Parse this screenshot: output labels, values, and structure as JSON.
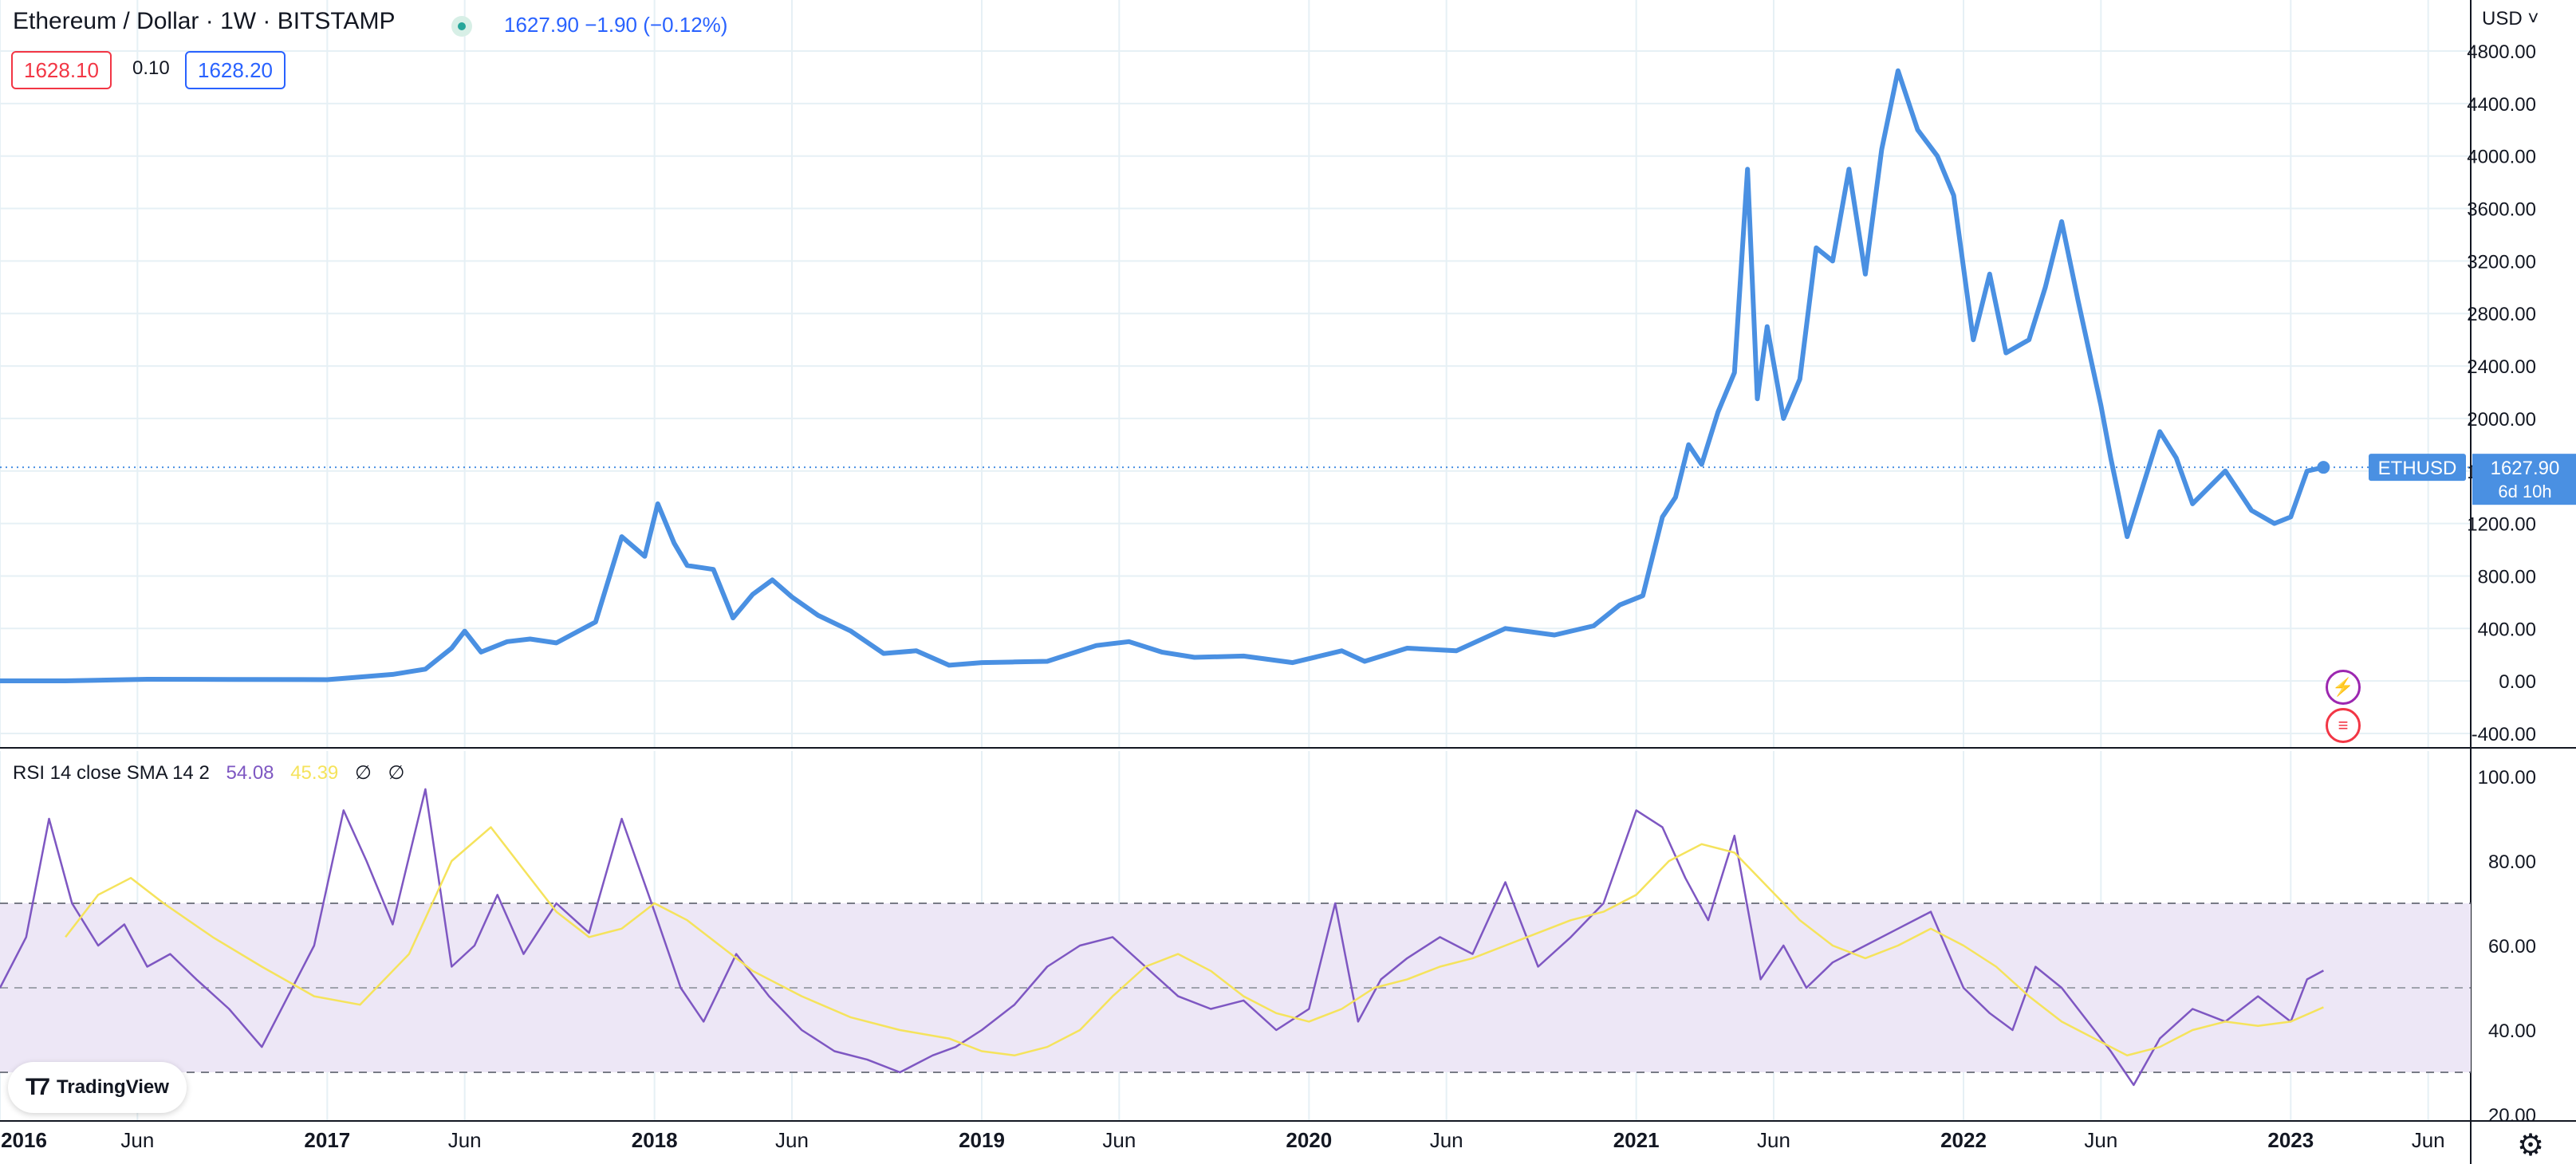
{
  "header": {
    "title": "Ethereum / Dollar · 1W · BITSTAMP",
    "last": "1627.90",
    "change": "−1.90 (−0.12%)",
    "bid": "1628.10",
    "spread": "0.10",
    "ask": "1628.20"
  },
  "currency": "USD",
  "price_label": {
    "symbol": "ETHUSD",
    "price": "1627.90",
    "countdown": "6d 10h"
  },
  "rsi_legend": {
    "label": "RSI 14 close SMA 14 2",
    "rsi_value": "54.08",
    "sma_value": "45.39",
    "na1": "∅",
    "na2": "∅"
  },
  "branding": "TradingView",
  "colors": {
    "price_line": "#4a90e2",
    "rsi_line": "#7e57c2",
    "rsi_sma_line": "#f5e35c",
    "rsi_band_fill": "#ede7f6",
    "accent_blue": "#2962ff",
    "down_red": "#f23645",
    "grid": "#e6f0f5"
  },
  "chart_data": [
    {
      "type": "line",
      "name": "price",
      "y_ticks": [
        -400,
        0,
        400,
        800,
        1200,
        1600,
        2000,
        2400,
        2800,
        3200,
        3600,
        4000,
        4400,
        4800
      ],
      "ylim": [
        -400,
        4800
      ],
      "x_tick_labels": [
        "2016",
        "Jun",
        "2017",
        "Jun",
        "2018",
        "Jun",
        "2019",
        "Jun",
        "2020",
        "Jun",
        "2021",
        "Jun",
        "2022",
        "Jun",
        "2023",
        "Jun"
      ],
      "x_tick_values": [
        2016.0,
        2016.42,
        2017.0,
        2017.42,
        2018.0,
        2018.42,
        2019.0,
        2019.42,
        2020.0,
        2020.42,
        2021.0,
        2021.42,
        2022.0,
        2022.42,
        2023.0,
        2023.42
      ],
      "xlim": [
        2016.0,
        2023.55
      ],
      "x": [
        2016.0,
        2016.2,
        2016.45,
        2016.7,
        2017.0,
        2017.2,
        2017.3,
        2017.38,
        2017.42,
        2017.47,
        2017.55,
        2017.62,
        2017.7,
        2017.82,
        2017.9,
        2017.97,
        2018.01,
        2018.06,
        2018.1,
        2018.18,
        2018.24,
        2018.3,
        2018.36,
        2018.42,
        2018.5,
        2018.6,
        2018.7,
        2018.8,
        2018.9,
        2019.0,
        2019.1,
        2019.2,
        2019.35,
        2019.45,
        2019.55,
        2019.65,
        2019.8,
        2019.95,
        2020.1,
        2020.17,
        2020.3,
        2020.45,
        2020.6,
        2020.75,
        2020.87,
        2020.95,
        2021.02,
        2021.08,
        2021.12,
        2021.16,
        2021.2,
        2021.25,
        2021.3,
        2021.34,
        2021.37,
        2021.4,
        2021.45,
        2021.5,
        2021.55,
        2021.6,
        2021.65,
        2021.7,
        2021.75,
        2021.8,
        2021.86,
        2021.92,
        2021.97,
        2022.03,
        2022.08,
        2022.13,
        2022.2,
        2022.25,
        2022.3,
        2022.35,
        2022.42,
        2022.45,
        2022.5,
        2022.55,
        2022.6,
        2022.65,
        2022.7,
        2022.8,
        2022.88,
        2022.95,
        2023.0,
        2023.05,
        2023.1
      ],
      "y": [
        1,
        1,
        13,
        12,
        10,
        50,
        90,
        250,
        380,
        220,
        300,
        320,
        290,
        450,
        1100,
        950,
        1350,
        1050,
        880,
        850,
        480,
        660,
        770,
        640,
        500,
        380,
        210,
        230,
        120,
        140,
        145,
        150,
        270,
        300,
        220,
        180,
        190,
        140,
        230,
        150,
        250,
        230,
        400,
        350,
        420,
        580,
        650,
        1250,
        1400,
        1800,
        1650,
        2050,
        2350,
        3900,
        2150,
        2700,
        2000,
        2300,
        3300,
        3200,
        3900,
        3100,
        4050,
        4650,
        4200,
        4000,
        3700,
        2600,
        3100,
        2500,
        2600,
        3000,
        3500,
        2900,
        2100,
        1700,
        1100,
        1500,
        1900,
        1700,
        1350,
        1600,
        1300,
        1200,
        1250,
        1600,
        1627.9
      ]
    },
    {
      "type": "line",
      "name": "RSI 14 close SMA 14 2",
      "y_ticks": [
        20,
        40,
        60,
        80,
        100
      ],
      "ylim": [
        20,
        100
      ],
      "bands": [
        30,
        50,
        70
      ],
      "series": [
        {
          "name": "RSI",
          "x": [
            2016.0,
            2016.08,
            2016.15,
            2016.22,
            2016.3,
            2016.38,
            2016.45,
            2016.52,
            2016.6,
            2016.7,
            2016.8,
            2016.88,
            2016.96,
            2017.05,
            2017.12,
            2017.2,
            2017.3,
            2017.38,
            2017.45,
            2017.52,
            2017.6,
            2017.7,
            2017.8,
            2017.9,
            2018.0,
            2018.08,
            2018.15,
            2018.25,
            2018.35,
            2018.45,
            2018.55,
            2018.65,
            2018.75,
            2018.85,
            2018.92,
            2019.0,
            2019.1,
            2019.2,
            2019.3,
            2019.4,
            2019.5,
            2019.6,
            2019.7,
            2019.8,
            2019.9,
            2020.0,
            2020.08,
            2020.15,
            2020.22,
            2020.3,
            2020.4,
            2020.5,
            2020.6,
            2020.7,
            2020.8,
            2020.9,
            2021.0,
            2021.08,
            2021.15,
            2021.22,
            2021.3,
            2021.38,
            2021.45,
            2021.52,
            2021.6,
            2021.7,
            2021.8,
            2021.9,
            2022.0,
            2022.08,
            2022.15,
            2022.22,
            2022.3,
            2022.38,
            2022.45,
            2022.52,
            2022.6,
            2022.7,
            2022.8,
            2022.9,
            2023.0,
            2023.05,
            2023.1
          ],
          "y": [
            50,
            62,
            90,
            70,
            60,
            65,
            55,
            58,
            52,
            45,
            36,
            48,
            60,
            92,
            80,
            65,
            97,
            55,
            60,
            72,
            58,
            70,
            63,
            90,
            68,
            50,
            42,
            58,
            48,
            40,
            35,
            33,
            30,
            34,
            36,
            40,
            46,
            55,
            60,
            62,
            55,
            48,
            45,
            47,
            40,
            45,
            70,
            42,
            52,
            57,
            62,
            58,
            75,
            55,
            62,
            70,
            92,
            88,
            76,
            66,
            86,
            52,
            60,
            50,
            56,
            60,
            64,
            68,
            50,
            44,
            40,
            55,
            50,
            42,
            35,
            27,
            38,
            45,
            42,
            48,
            42,
            52,
            54.08
          ]
        },
        {
          "name": "SMA",
          "x": [
            2016.2,
            2016.3,
            2016.4,
            2016.5,
            2016.65,
            2016.8,
            2016.96,
            2017.1,
            2017.25,
            2017.38,
            2017.5,
            2017.6,
            2017.7,
            2017.8,
            2017.9,
            2018.0,
            2018.1,
            2018.2,
            2018.3,
            2018.45,
            2018.6,
            2018.75,
            2018.9,
            2019.0,
            2019.1,
            2019.2,
            2019.3,
            2019.4,
            2019.5,
            2019.6,
            2019.7,
            2019.8,
            2019.9,
            2020.0,
            2020.1,
            2020.2,
            2020.3,
            2020.4,
            2020.5,
            2020.6,
            2020.7,
            2020.8,
            2020.9,
            2021.0,
            2021.1,
            2021.2,
            2021.3,
            2021.4,
            2021.5,
            2021.6,
            2021.7,
            2021.8,
            2021.9,
            2022.0,
            2022.1,
            2022.2,
            2022.3,
            2022.4,
            2022.5,
            2022.6,
            2022.7,
            2022.8,
            2022.9,
            2023.0,
            2023.1
          ],
          "y": [
            62,
            72,
            76,
            70,
            62,
            55,
            48,
            46,
            58,
            80,
            88,
            78,
            68,
            62,
            64,
            70,
            66,
            60,
            54,
            48,
            43,
            40,
            38,
            35,
            34,
            36,
            40,
            48,
            55,
            58,
            54,
            48,
            44,
            42,
            45,
            50,
            52,
            55,
            57,
            60,
            63,
            66,
            68,
            72,
            80,
            84,
            82,
            74,
            66,
            60,
            57,
            60,
            64,
            60,
            55,
            48,
            42,
            38,
            34,
            36,
            40,
            42,
            41,
            42,
            45.39
          ]
        }
      ]
    }
  ]
}
